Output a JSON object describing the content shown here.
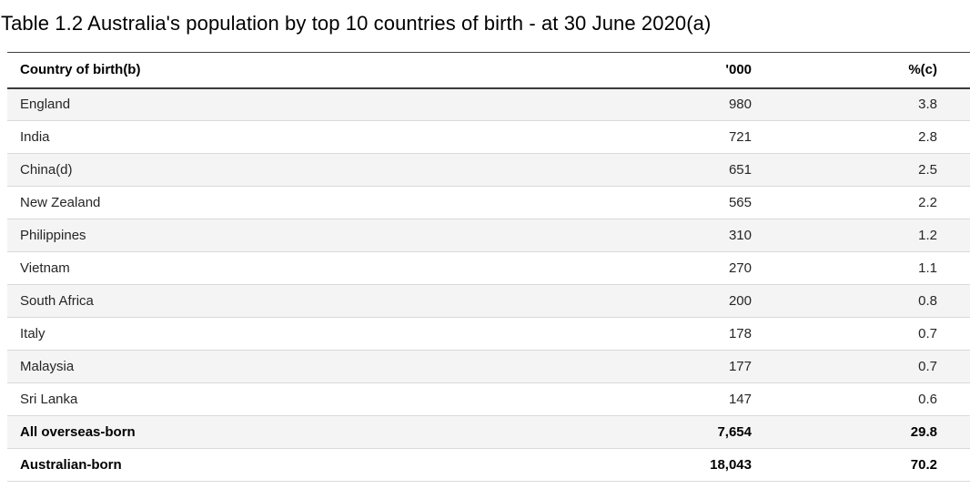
{
  "title": "Table 1.2 Australia's population by top 10 countries of birth - at 30 June 2020(a)",
  "table": {
    "columns": [
      "Country of birth(b)",
      "'000",
      "%(c)"
    ],
    "rows": [
      {
        "country": "England",
        "thousands": "980",
        "percent": "3.8",
        "bold": false
      },
      {
        "country": "India",
        "thousands": "721",
        "percent": "2.8",
        "bold": false
      },
      {
        "country": "China(d)",
        "thousands": "651",
        "percent": "2.5",
        "bold": false
      },
      {
        "country": "New Zealand",
        "thousands": "565",
        "percent": "2.2",
        "bold": false
      },
      {
        "country": "Philippines",
        "thousands": "310",
        "percent": "1.2",
        "bold": false
      },
      {
        "country": "Vietnam",
        "thousands": "270",
        "percent": "1.1",
        "bold": false
      },
      {
        "country": "South Africa",
        "thousands": "200",
        "percent": "0.8",
        "bold": false
      },
      {
        "country": "Italy",
        "thousands": "178",
        "percent": "0.7",
        "bold": false
      },
      {
        "country": "Malaysia",
        "thousands": "177",
        "percent": "0.7",
        "bold": false
      },
      {
        "country": "Sri Lanka",
        "thousands": "147",
        "percent": "0.6",
        "bold": false
      },
      {
        "country": "All overseas-born",
        "thousands": "7,654",
        "percent": "29.8",
        "bold": true
      },
      {
        "country": "Australian-born",
        "thousands": "18,043",
        "percent": "70.2",
        "bold": true
      }
    ]
  },
  "chart_data": {
    "type": "table",
    "title": "Table 1.2 Australia's population by top 10 countries of birth - at 30 June 2020(a)",
    "columns": [
      "Country of birth(b)",
      "'000",
      "%(c)"
    ],
    "categories": [
      "England",
      "India",
      "China(d)",
      "New Zealand",
      "Philippines",
      "Vietnam",
      "South Africa",
      "Italy",
      "Malaysia",
      "Sri Lanka",
      "All overseas-born",
      "Australian-born"
    ],
    "series": [
      {
        "name": "'000",
        "values": [
          980,
          721,
          651,
          565,
          310,
          270,
          200,
          178,
          177,
          147,
          7654,
          18043
        ]
      },
      {
        "name": "%(c)",
        "values": [
          3.8,
          2.8,
          2.5,
          2.2,
          1.2,
          1.1,
          0.8,
          0.7,
          0.7,
          0.6,
          29.8,
          70.2
        ]
      }
    ]
  },
  "colors": {
    "row_shade": "#f4f4f4",
    "row_separator": "#d9d9d9",
    "header_rule": "#3b3b3b",
    "top_rule": "#404040",
    "text": "#262626",
    "text_strong": "#000000"
  }
}
